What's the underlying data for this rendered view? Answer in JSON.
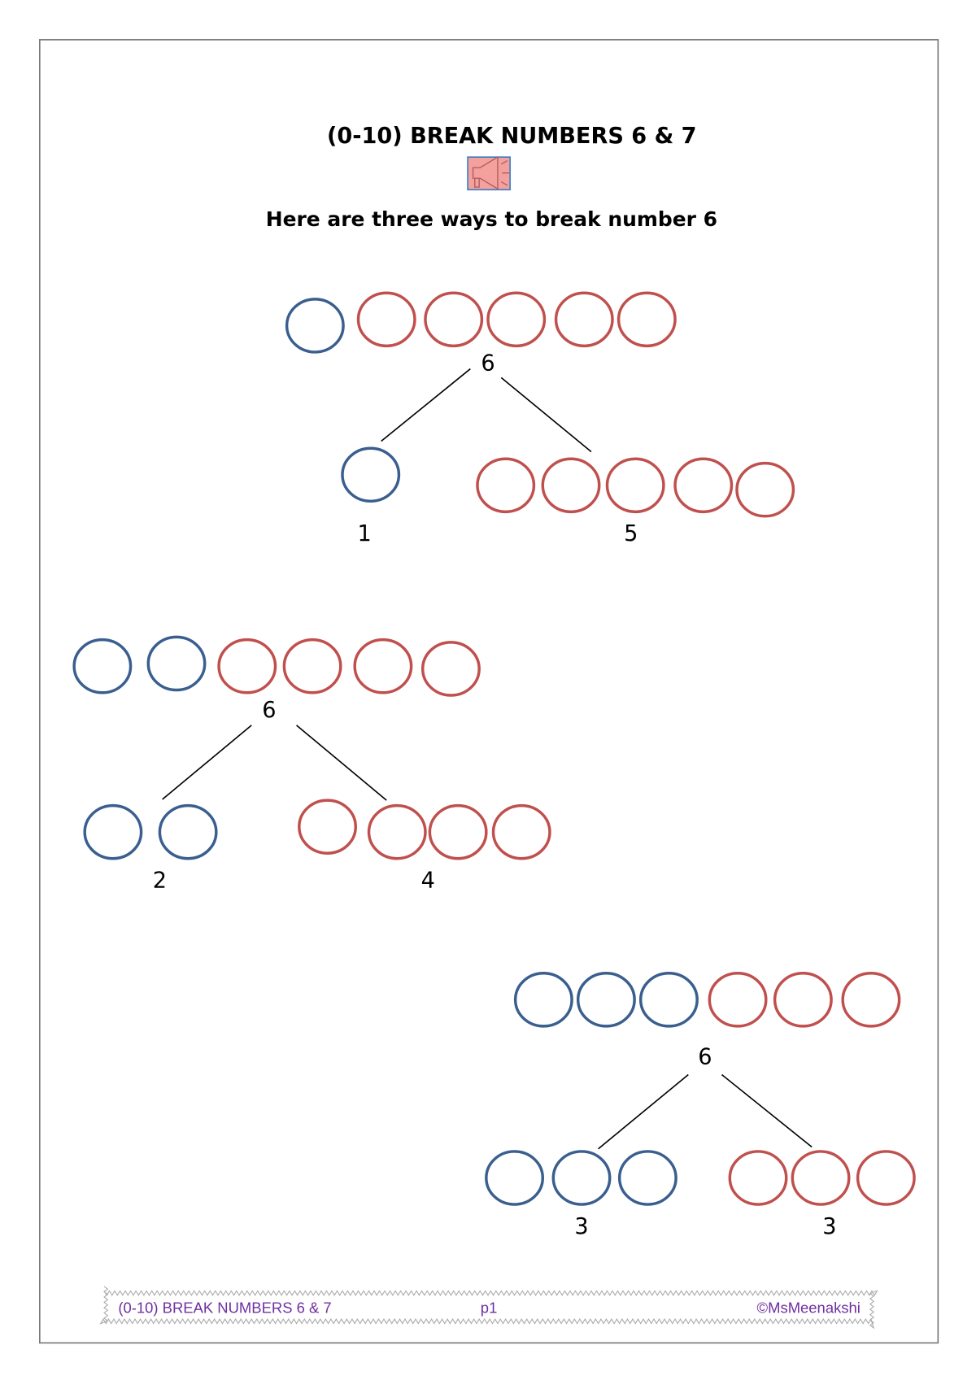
{
  "title": "(0-10) BREAK NUMBERS 6 & 7",
  "audio_icon": "speaker-icon",
  "subtitle": "Here are three ways to break number 6",
  "colors": {
    "blue": "#3a5f8f",
    "red": "#c0504d",
    "footer_text": "#7030a0",
    "icon_bg": "#f4a09c"
  },
  "groups": [
    {
      "whole": "6",
      "top": {
        "blue": 1,
        "red": 5
      },
      "left_part": "1",
      "right_part": "5"
    },
    {
      "whole": "6",
      "top": {
        "blue": 2,
        "red": 4
      },
      "left_part": "2",
      "right_part": "4"
    },
    {
      "whole": "6",
      "top": {
        "blue": 3,
        "red": 3
      },
      "left_part": "3",
      "right_part": "3"
    }
  ],
  "footer": {
    "left": "(0-10) BREAK NUMBERS 6 & 7",
    "center": "p1",
    "right": "©MsMeenakshi"
  }
}
